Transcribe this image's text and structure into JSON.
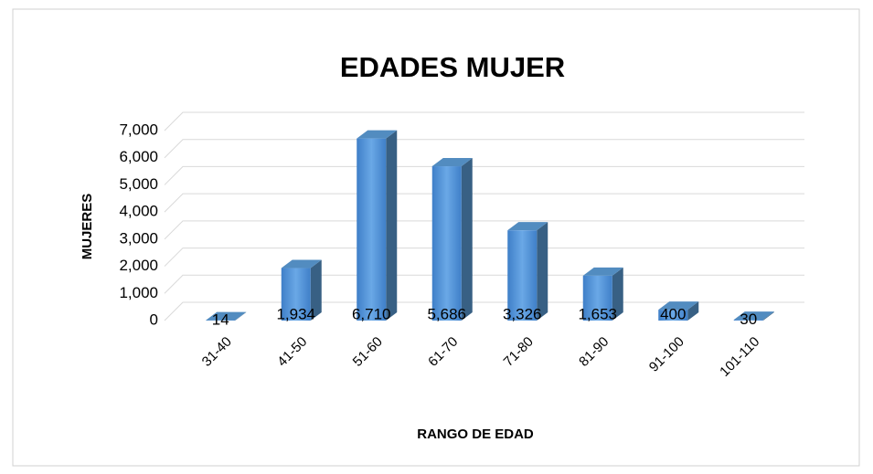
{
  "chart_data": {
    "type": "bar",
    "title": "EDADES MUJER",
    "x_label": "RANGO DE EDAD",
    "y_label": "MUJERES",
    "categories": [
      "31-40",
      "41-50",
      "51-60",
      "61-70",
      "71-80",
      "81-90",
      "91-100",
      "101-110"
    ],
    "values": [
      14,
      1934,
      6710,
      5686,
      3326,
      1653,
      400,
      30
    ],
    "value_labels": [
      "14",
      "1,934",
      "6,710",
      "5,686",
      "3,326",
      "1,653",
      "400",
      "30"
    ],
    "color": "#5b9bd5",
    "ylim": [
      0,
      7000
    ],
    "yticks": [
      0,
      {
        "value": 1000,
        "label": "1,000"
      },
      {
        "value": 2000,
        "label": "2,000"
      },
      {
        "value": 3000,
        "label": "3,000"
      },
      {
        "value": 4000,
        "label": "4,000"
      },
      {
        "value": 5000,
        "label": "5,000"
      },
      {
        "value": 6000,
        "label": "6,000"
      },
      {
        "value": 7000,
        "label": "7,000"
      }
    ],
    "grid": true
  }
}
